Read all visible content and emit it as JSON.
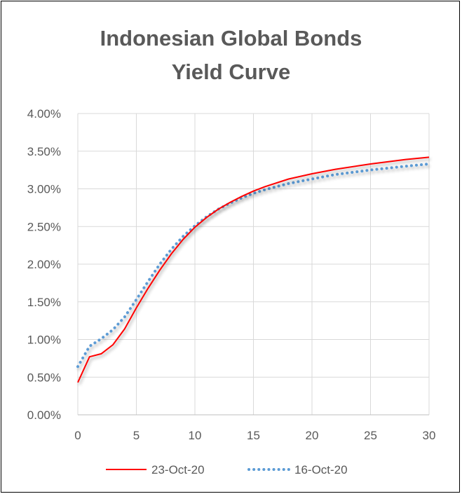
{
  "chart_data": {
    "type": "line",
    "title_lines": [
      "Indonesian Global Bonds",
      "Yield Curve"
    ],
    "xlabel": "",
    "ylabel": "",
    "xlim": [
      0,
      30
    ],
    "ylim": [
      0,
      0.04
    ],
    "x_ticks": [
      0,
      5,
      10,
      15,
      20,
      25,
      30
    ],
    "y_ticks": [
      0,
      0.005,
      0.01,
      0.015,
      0.02,
      0.025,
      0.03,
      0.035,
      0.04
    ],
    "x_tick_labels": [
      "0",
      "5",
      "10",
      "15",
      "20",
      "25",
      "30"
    ],
    "y_tick_labels": [
      "0.00%",
      "0.50%",
      "1.00%",
      "1.50%",
      "2.00%",
      "2.50%",
      "3.00%",
      "3.50%",
      "4.00%"
    ],
    "grid": true,
    "legend_position": "bottom",
    "series": [
      {
        "name": "23-Oct-20",
        "color": "#ff0000",
        "style": "solid",
        "x": [
          0,
          1,
          2,
          3,
          4,
          5,
          6,
          7,
          8,
          9,
          10,
          11,
          12,
          13,
          14,
          15,
          16,
          18,
          20,
          22,
          25,
          28,
          30
        ],
        "y": [
          0.0043,
          0.0077,
          0.0081,
          0.0093,
          0.0114,
          0.0142,
          0.0168,
          0.0192,
          0.0214,
          0.0233,
          0.0249,
          0.0262,
          0.0273,
          0.0282,
          0.029,
          0.0297,
          0.0303,
          0.0313,
          0.032,
          0.0326,
          0.0333,
          0.0339,
          0.0342
        ]
      },
      {
        "name": "16-Oct-20",
        "color": "#5b9bd5",
        "style": "dotted",
        "x": [
          0,
          1,
          2,
          3,
          4,
          5,
          6,
          7,
          8,
          9,
          10,
          11,
          12,
          13,
          14,
          15,
          16,
          18,
          20,
          22,
          25,
          28,
          30
        ],
        "y": [
          0.0064,
          0.0091,
          0.0101,
          0.0113,
          0.013,
          0.0153,
          0.0177,
          0.02,
          0.022,
          0.0237,
          0.0251,
          0.0263,
          0.0273,
          0.0281,
          0.0288,
          0.0294,
          0.0299,
          0.0307,
          0.0313,
          0.0319,
          0.0325,
          0.033,
          0.0333
        ]
      }
    ]
  }
}
